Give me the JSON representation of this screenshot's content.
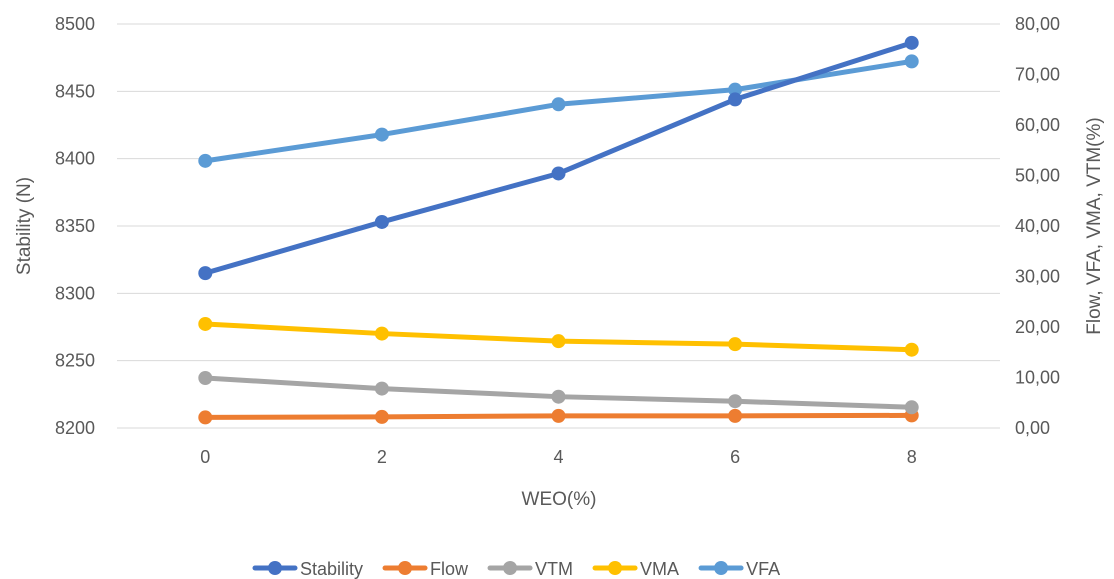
{
  "chart_data": {
    "type": "line",
    "x": [
      0,
      2,
      4,
      6,
      8
    ],
    "xlabel": "WEO(%)",
    "ylabel": "Stability (N)",
    "y2label": "Flow, VFA, VMA, VTM(%)",
    "ylim": [
      8200,
      8500
    ],
    "y2lim": [
      0,
      80
    ],
    "yticks": [
      "8200",
      "8250",
      "8300",
      "8350",
      "8400",
      "8450",
      "8500"
    ],
    "y2ticks": [
      "0,00",
      "10,00",
      "20,00",
      "30,00",
      "40,00",
      "50,00",
      "60,00",
      "70,00",
      "80,00"
    ],
    "xticks": [
      "0",
      "2",
      "4",
      "6",
      "8"
    ],
    "grid": true,
    "legend_position": "bottom",
    "series": [
      {
        "name": "Stability",
        "axis": "left",
        "color": "#4472C4",
        "values": [
          8315,
          8353,
          8389,
          8444,
          8486
        ]
      },
      {
        "name": "Flow",
        "axis": "right",
        "color": "#ED7D31",
        "values": [
          2.1,
          2.2,
          2.4,
          2.4,
          2.5
        ]
      },
      {
        "name": "VTM",
        "axis": "right",
        "color": "#A5A5A5",
        "values": [
          9.9,
          7.8,
          6.2,
          5.3,
          4.1
        ]
      },
      {
        "name": "VMA",
        "axis": "right",
        "color": "#FFC000",
        "values": [
          20.6,
          18.7,
          17.2,
          16.6,
          15.5
        ]
      },
      {
        "name": "VFA",
        "axis": "right",
        "color": "#5B9BD5",
        "values": [
          52.9,
          58.1,
          64.1,
          67.0,
          72.6
        ]
      }
    ]
  }
}
